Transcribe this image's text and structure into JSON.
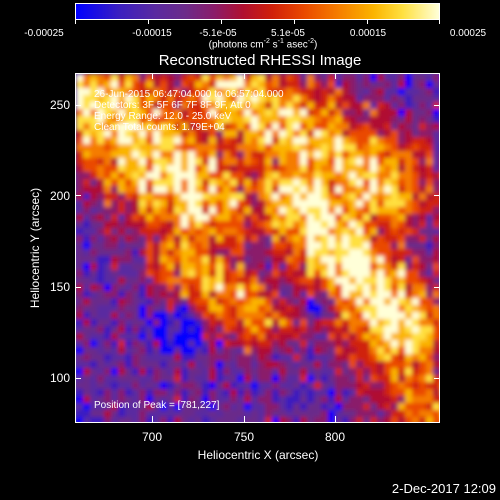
{
  "colorbar": {
    "ticks": [
      "-0.00025",
      "-0.00015",
      "-5.1e-05",
      "5.1e-05",
      "0.00015",
      "0.00025"
    ],
    "unit_main": "(photons cm",
    "unit_exp1": "-2",
    "unit_mid1": " s",
    "unit_exp2": "-1",
    "unit_mid2": " asec",
    "unit_exp3": "-2",
    "unit_end": ")",
    "colormap": [
      "#0000ff",
      "#3b1fbf",
      "#5a2aa0",
      "#6b2b8a",
      "#8a1c6a",
      "#b01030",
      "#d0200a",
      "#ea4a00",
      "#f57c00",
      "#fbb400",
      "#ffe040",
      "#ffffd8"
    ]
  },
  "plot": {
    "title": "Reconstructed RHESSI Image",
    "annotations": {
      "time_range": "26-Jun-2015 06:47:04.000 to 06:57:04.000",
      "detectors": "Detectors: 3F 5F 6F 7F 8F 9F, Att 0",
      "energy_range": "Energy Range: 12.0 - 25.0 keV",
      "clean_counts": "Clean     Total counts: 1.79E+04",
      "peak_position": "Position of Peak = [781,227]"
    },
    "xlabel": "Heliocentric X (arcsec)",
    "ylabel": "Heliocentric Y (arcsec)",
    "xticks": [
      "700",
      "750",
      "800"
    ],
    "yticks": [
      "250",
      "200",
      "150",
      "100"
    ]
  },
  "footer": {
    "date": "2-Dec-2017 12:09"
  }
}
